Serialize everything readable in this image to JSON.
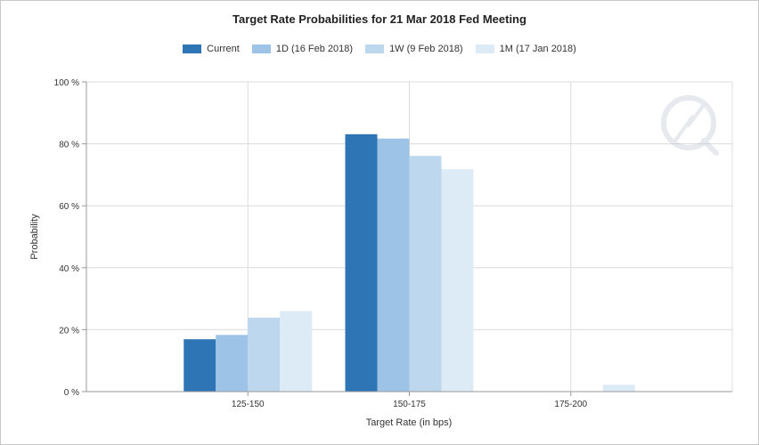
{
  "chart_data": {
    "type": "bar",
    "title": "Target Rate Probabilities for 21 Mar 2018 Fed Meeting",
    "xlabel": "Target Rate (in bps)",
    "ylabel": "Probability",
    "categories": [
      "125-150",
      "150-175",
      "175-200"
    ],
    "ylim": [
      0,
      100
    ],
    "y_ticks": [
      "0 %",
      "20 %",
      "40 %",
      "60 %",
      "80 %",
      "100 %"
    ],
    "y_tick_values": [
      0,
      20,
      40,
      60,
      80,
      100
    ],
    "grid": true,
    "legend_position": "top",
    "series": [
      {
        "name": "Current",
        "color": "#2e75b6",
        "values": [
          16.9,
          83.1,
          0
        ]
      },
      {
        "name": "1D (16 Feb 2018)",
        "color": "#9dc3e6",
        "values": [
          18.3,
          81.7,
          0
        ]
      },
      {
        "name": "1W (9 Feb 2018)",
        "color": "#bdd7ee",
        "values": [
          23.9,
          76.1,
          0
        ]
      },
      {
        "name": "1M (17 Jan 2018)",
        "color": "#ddebf7",
        "values": [
          26.0,
          71.8,
          2.2
        ]
      }
    ]
  }
}
